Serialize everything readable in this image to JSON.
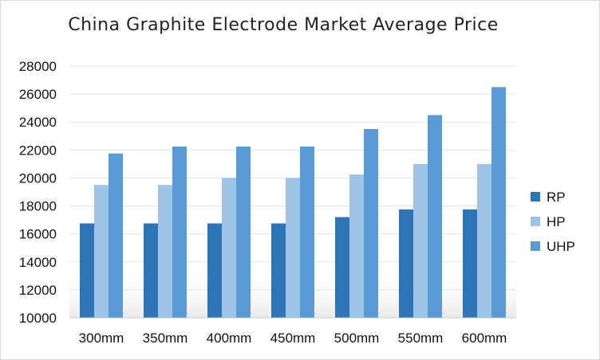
{
  "chart_data": {
    "type": "bar",
    "title": "China Graphite Electrode Market Average Price",
    "categories": [
      "300mm",
      "350mm",
      "400mm",
      "450mm",
      "500mm",
      "550mm",
      "600mm"
    ],
    "series": [
      {
        "name": "RP",
        "color": "#2e75b6",
        "values": [
          16750,
          16750,
          16750,
          16750,
          17200,
          17750,
          17750
        ]
      },
      {
        "name": "HP",
        "color": "#9dc3e6",
        "values": [
          19500,
          19500,
          20000,
          20000,
          20250,
          21000,
          21000
        ]
      },
      {
        "name": "UHP",
        "color": "#5b9bd5",
        "values": [
          21750,
          22250,
          22250,
          22250,
          23500,
          24500,
          26500
        ]
      }
    ],
    "ylim": [
      10000,
      28000
    ],
    "yticks": [
      10000,
      12000,
      14000,
      16000,
      18000,
      20000,
      22000,
      24000,
      26000,
      28000
    ],
    "ytick_labels": [
      "10000",
      "12000",
      "14000",
      "16000",
      "18000",
      "20000",
      "22000",
      "24000",
      "26000",
      "28000"
    ],
    "grid": true,
    "legend_position": "right"
  }
}
